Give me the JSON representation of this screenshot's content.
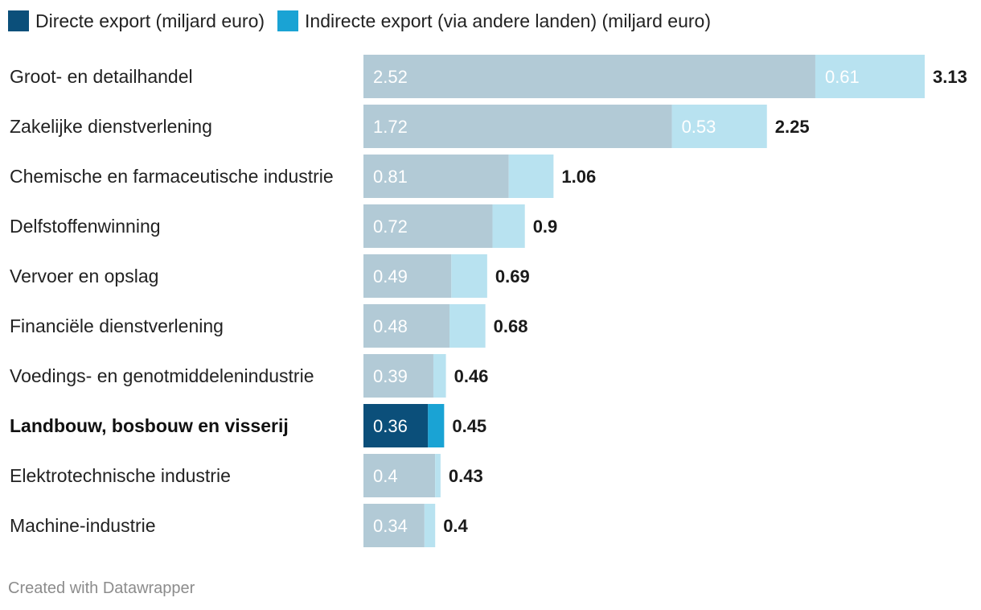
{
  "chart_data": {
    "type": "bar",
    "orientation": "horizontal",
    "stacked": true,
    "title": "",
    "categories": [
      "Groot- en detailhandel",
      "Zakelijke dienstverlening",
      "Chemische en farmaceutische industrie",
      "Delfstoffenwinning",
      "Vervoer en opslag",
      "Financiële dienstverlening",
      "Voedings- en genotmiddelenindustrie",
      "Landbouw, bosbouw en visserij",
      "Elektrotechnische industrie",
      "Machine-industrie"
    ],
    "highlight_category": "Landbouw, bosbouw en visserij",
    "series": [
      {
        "name": "Directe export (miljard euro)",
        "color": "#0b4f7a",
        "muted_color": "#b2cad6",
        "values": [
          2.52,
          1.72,
          0.81,
          0.72,
          0.49,
          0.48,
          0.39,
          0.36,
          0.4,
          0.34
        ]
      },
      {
        "name": "Indirecte export (via andere landen) (miljard euro)",
        "color": "#1aa3d4",
        "muted_color": "#b8e2f0",
        "values": [
          0.61,
          0.53,
          0.25,
          0.18,
          0.2,
          0.2,
          0.07,
          0.09,
          0.03,
          0.06
        ]
      }
    ],
    "value_labels": {
      "direct": [
        "2.52",
        "1.72",
        "0.81",
        "0.72",
        "0.49",
        "0.48",
        "0.39",
        "0.36",
        "0.4",
        "0.34"
      ],
      "indirect": [
        "0.61",
        "0.53",
        "",
        "",
        "",
        "",
        "",
        "",
        "",
        ""
      ]
    },
    "totals": [
      "3.13",
      "2.25",
      "1.06",
      "0.9",
      "0.69",
      "0.68",
      "0.46",
      "0.45",
      "0.43",
      "0.4"
    ],
    "xlim": [
      0,
      3.13
    ],
    "grid": false,
    "legend_position": "top-left"
  },
  "footer": {
    "credit": "Created with Datawrapper"
  }
}
